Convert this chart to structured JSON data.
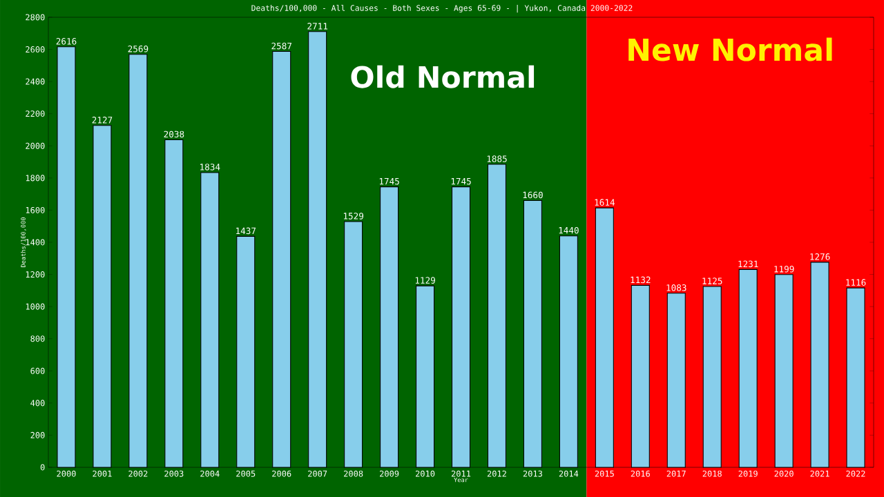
{
  "chart_data": {
    "type": "bar",
    "title": "Deaths/100,000 - All Causes - Both Sexes - Ages 65-69 -  | Yukon, Canada 2000-2022",
    "xlabel": "Year",
    "ylabel": "Deaths/100,000",
    "categories": [
      "2000",
      "2001",
      "2002",
      "2003",
      "2004",
      "2005",
      "2006",
      "2007",
      "2008",
      "2009",
      "2010",
      "2011",
      "2012",
      "2013",
      "2014",
      "2015",
      "2016",
      "2017",
      "2018",
      "2019",
      "2020",
      "2021",
      "2022"
    ],
    "values": [
      2616,
      2127,
      2569,
      2038,
      1834,
      1437,
      2587,
      2711,
      1529,
      1745,
      1129,
      1745,
      1885,
      1660,
      1440,
      1614,
      1132,
      1083,
      1125,
      1231,
      1199,
      1276,
      1116
    ],
    "color": "#87ceeb",
    "data_labels": true,
    "ylim": [
      0,
      2800
    ],
    "yticks": [
      0,
      200,
      400,
      600,
      800,
      1000,
      1200,
      1400,
      1600,
      1800,
      2000,
      2200,
      2400,
      2600,
      2800
    ],
    "grid": false,
    "bands": [
      {
        "axis": "x",
        "from": "2000",
        "to": "2014",
        "label": "Old Normal",
        "color": "#006400"
      },
      {
        "axis": "x",
        "from": "2015",
        "to": "2022",
        "label": "New Normal",
        "color": "#ff0000"
      }
    ]
  }
}
